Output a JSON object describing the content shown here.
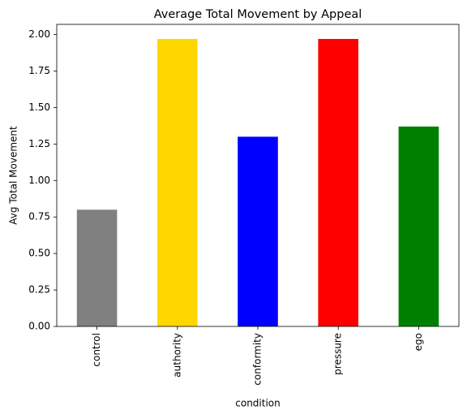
{
  "chart_data": {
    "type": "bar",
    "title": "Average Total Movement by Appeal",
    "xlabel": "condition",
    "ylabel": "Avg Total Movement",
    "categories": [
      "control",
      "authority",
      "conformity",
      "pressure",
      "ego"
    ],
    "values": [
      0.8,
      1.97,
      1.3,
      1.97,
      1.37
    ],
    "colors": [
      "#808080",
      "#ffd700",
      "#0000ff",
      "#ff0000",
      "#008000"
    ],
    "ylim": [
      0,
      2.07
    ],
    "yticks": [
      {
        "value": 0,
        "label": "0.00"
      },
      {
        "value": 0.25,
        "label": "0.25"
      },
      {
        "value": 0.5,
        "label": "0.50"
      },
      {
        "value": 0.75,
        "label": "0.75"
      },
      {
        "value": 1,
        "label": "1.00"
      },
      {
        "value": 1.25,
        "label": "1.25"
      },
      {
        "value": 1.5,
        "label": "1.50"
      },
      {
        "value": 1.75,
        "label": "1.75"
      },
      {
        "value": 2,
        "label": "2.00"
      }
    ],
    "grid": false
  }
}
